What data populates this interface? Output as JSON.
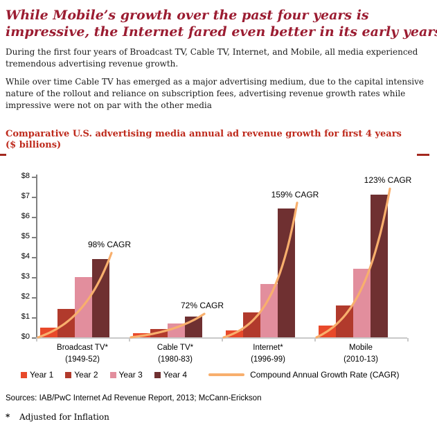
{
  "theme": {
    "title_color": "#9B1C31",
    "chart_title_color": "#BE2A1C",
    "divider_color": "#A3281F"
  },
  "page": {
    "title_lines": [
      "While Mobile’s growth over the past four years is",
      "impressive, the Internet fared even better in its early years"
    ],
    "paragraphs": [
      "During the first four years of Broadcast TV, Cable TV, Internet, and Mobile, all media experienced tremendous advertising revenue growth.",
      "While over time Cable TV has emerged as a major advertising medium, due to the capital intensive nature of the rollout and reliance on subscription fees, advertising revenue growth rates while impressive were not on par with the other media"
    ],
    "sources": "Sources: IAB/PwC Internet Ad Revenue Report, 2013; McCann-Erickson",
    "footnote": {
      "marker": "*",
      "text": "Adjusted for Inflation"
    }
  },
  "chart_data": {
    "type": "bar",
    "title": "Comparative U.S. advertising media annual ad revenue growth for first 4 years",
    "subtitle": "($ billions)",
    "ylim": [
      0,
      8
    ],
    "ytick_step": 1,
    "ytick_prefix": "$",
    "grid": false,
    "legend_position": "bottom",
    "categories": [
      {
        "label": "Broadcast TV*",
        "period": "(1949-52)",
        "cagr_label": "98% CAGR"
      },
      {
        "label": "Cable TV*",
        "period": "(1980-83)",
        "cagr_label": "72% CAGR"
      },
      {
        "label": "Internet*",
        "period": "(1996-99)",
        "cagr_label": "159% CAGR"
      },
      {
        "label": "Mobile",
        "period": "(2010-13)",
        "cagr_label": "123% CAGR"
      }
    ],
    "series": [
      {
        "name": "Year 1",
        "color": "#E8492A",
        "values": [
          0.5,
          0.2,
          0.35,
          0.6
        ]
      },
      {
        "name": "Year 2",
        "color": "#B13A2C",
        "values": [
          1.4,
          0.4,
          1.25,
          1.6
        ]
      },
      {
        "name": "Year 3",
        "color": "#E28E9D",
        "values": [
          3.0,
          0.7,
          2.65,
          3.4
        ]
      },
      {
        "name": "Year 4",
        "color": "#6F3031",
        "values": [
          3.9,
          1.05,
          6.4,
          7.1
        ]
      }
    ],
    "trend": {
      "name": "Compound Annual Growth Rate (CAGR)",
      "color": "#F8AF6D"
    }
  }
}
